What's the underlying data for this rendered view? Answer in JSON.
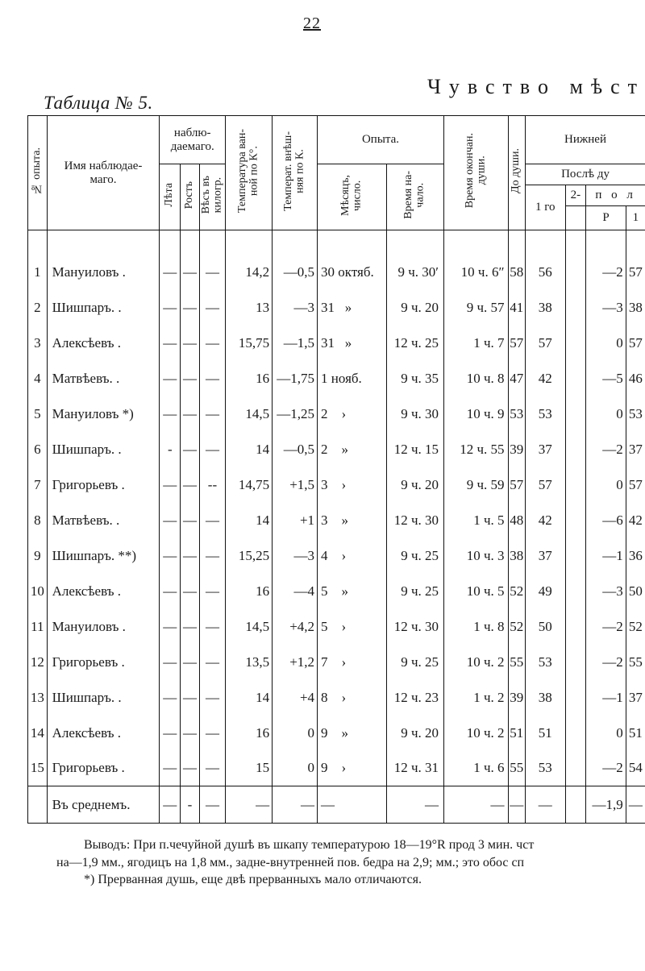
{
  "page_number": "22",
  "main_title": "Чувство мѣст",
  "table_label": "Таблица № 5.",
  "head": {
    "opyt_no": "№ опыта.",
    "name": "Имя наблюдае-\nмаго.",
    "nabl": "наблю-\nдаемаго.",
    "leta": "Лѣта",
    "rost": "Ростъ",
    "ves": "Вѣсъ въ\nкилогр.",
    "tvan": "Температура ван-\nной по К°.",
    "tvne": "Температ. внѣш-\nняя по К.",
    "opyta": "Опыта.",
    "mes": "Мѣсяцъ,\nчисло.",
    "vrn": "Время на-\nчало.",
    "vro": "Время окончан.\nдуши.",
    "nizh": "Нижней",
    "posle": "Послѣ ду",
    "dod": "До души.",
    "g1": "1 го",
    "g2": "2-",
    "pol": "п о л",
    "P": "Р",
    "one": "1"
  },
  "rows": [
    {
      "n": "1",
      "name": "Мануиловъ .",
      "l": "—",
      "r": "—",
      "v": "—",
      "tv": "14,2",
      "te": "—0,5",
      "m": "30 октяб.",
      "vn": "9 ч. 30′",
      "vo": "10 ч. 6″",
      "d": "58",
      "g1": "56",
      "g2": "",
      "p": "—2",
      "o": "57"
    },
    {
      "n": "2",
      "name": "Шишпаръ. .",
      "l": "—",
      "r": "—",
      "v": "—",
      "tv": "13",
      "te": "—3",
      "m": "31   »",
      "vn": "9 ч. 20",
      "vo": "9 ч. 57",
      "d": "41",
      "g1": "38",
      "g2": "",
      "p": "—3",
      "o": "38"
    },
    {
      "n": "3",
      "name": "Алексѣевъ .",
      "l": "—",
      "r": "—",
      "v": "—",
      "tv": "15,75",
      "te": "—1,5",
      "m": "31   »",
      "vn": "12 ч. 25",
      "vo": "1 ч.  7",
      "d": "57",
      "g1": "57",
      "g2": "",
      "p": "0",
      "o": "57"
    },
    {
      "n": "4",
      "name": "Матвѣевъ. .",
      "l": "—",
      "r": "—",
      "v": "—",
      "tv": "16",
      "te": "—1,75",
      "m": "1 нояб.",
      "vn": "9 ч. 35",
      "vo": "10 ч.  8",
      "d": "47",
      "g1": "42",
      "g2": "",
      "p": "—5",
      "o": "46"
    },
    {
      "n": "5",
      "name": "Мануиловъ *)",
      "l": "—",
      "r": "—",
      "v": "—",
      "tv": "14,5",
      "te": "—1,25",
      "m": "2    ›",
      "vn": "9 ч. 30",
      "vo": "10 ч.  9",
      "d": "53",
      "g1": "53",
      "g2": "",
      "p": "0",
      "o": "53"
    },
    {
      "n": "6",
      "name": "Шишпаръ. .",
      "l": "-",
      "r": "—",
      "v": "—",
      "tv": "14",
      "te": "—0,5",
      "m": "2    »",
      "vn": "12 ч. 15",
      "vo": "12 ч. 55",
      "d": "39",
      "g1": "37",
      "g2": "",
      "p": "—2",
      "o": "37"
    },
    {
      "n": "7",
      "name": "Григорьевъ .",
      "l": "—",
      "r": "—",
      "v": "--",
      "tv": "14,75",
      "te": "+1,5",
      "m": "3    ›",
      "vn": "9 ч. 20",
      "vo": "9 ч. 59",
      "d": "57",
      "g1": "57",
      "g2": "",
      "p": "0",
      "o": "57"
    },
    {
      "n": "8",
      "name": "Матвѣевъ. .",
      "l": "—",
      "r": "—",
      "v": "—",
      "tv": "14",
      "te": "+1",
      "m": "3    »",
      "vn": "12 ч. 30",
      "vo": "1 ч.  5",
      "d": "48",
      "g1": "42",
      "g2": "",
      "p": "—6",
      "o": "42"
    },
    {
      "n": "9",
      "name": "Шишпаръ. **)",
      "l": "—",
      "r": "—",
      "v": "—",
      "tv": "15,25",
      "te": "—3",
      "m": "4    ›",
      "vn": "9 ч. 25",
      "vo": "10 ч.  3",
      "d": "38",
      "g1": "37",
      "g2": "",
      "p": "—1",
      "o": "36"
    },
    {
      "n": "10",
      "name": "Алексѣевъ .",
      "l": "—",
      "r": "—",
      "v": "—",
      "tv": "16",
      "te": "—4",
      "m": "5    »",
      "vn": "9 ч. 25",
      "vo": "10 ч.  5",
      "d": "52",
      "g1": "49",
      "g2": "",
      "p": "—3",
      "o": "50"
    },
    {
      "n": "11",
      "name": "Мануиловъ .",
      "l": "—",
      "r": "—",
      "v": "—",
      "tv": "14,5",
      "te": "+4,2",
      "m": "5    ›",
      "vn": "12 ч. 30",
      "vo": "1 ч.  8",
      "d": "52",
      "g1": "50",
      "g2": "",
      "p": "—2",
      "o": "52"
    },
    {
      "n": "12",
      "name": "Григорьевъ .",
      "l": "—",
      "r": "—",
      "v": "—",
      "tv": "13,5",
      "te": "+1,2",
      "m": "7    ›",
      "vn": "9 ч. 25",
      "vo": "10 ч.  2",
      "d": "55",
      "g1": "53",
      "g2": "",
      "p": "—2",
      "o": "55"
    },
    {
      "n": "13",
      "name": "Шишпаръ. .",
      "l": "—",
      "r": "—",
      "v": "—",
      "tv": "14",
      "te": "+4",
      "m": "8    ›",
      "vn": "12 ч. 23",
      "vo": "1 ч.  2",
      "d": "39",
      "g1": "38",
      "g2": "",
      "p": "—1",
      "o": "37"
    },
    {
      "n": "14",
      "name": "Алексѣевъ .",
      "l": "—",
      "r": "—",
      "v": "—",
      "tv": "16",
      "te": "0",
      "m": "9    »",
      "vn": "9 ч. 20",
      "vo": "10 ч.  2",
      "d": "51",
      "g1": "51",
      "g2": "",
      "p": "0",
      "o": "51"
    },
    {
      "n": "15",
      "name": "Григорьевъ .",
      "l": "—",
      "r": "—",
      "v": "—",
      "tv": "15",
      "te": "0",
      "m": "9    ›",
      "vn": "12 ч. 31",
      "vo": "1 ч.  6",
      "d": "55",
      "g1": "53",
      "g2": "",
      "p": "—2",
      "o": "54"
    }
  ],
  "lastrow": {
    "name": "Въ среднемъ.",
    "l": "—",
    "r": "-",
    "v": "—",
    "tv": "—",
    "te": "—",
    "m": "—",
    "vn": "—",
    "vo": "—",
    "d": "—",
    "g1": "—",
    "g2": "",
    "p": "—1,9",
    "o": "—"
  },
  "footnote": {
    "l1": "Выводъ: При п.чечуйной душѣ въ шкапу температурою 18—19°R прод 3 мин. чст",
    "l2": "на—1,9 мм., ягодицъ на 1,8 мм., задне-внутренней пов. бедра на 2,9; мм.; это обос сп",
    "l3": "*) Прерванная душь, еще двѣ прерванныхъ мало отличаются."
  }
}
